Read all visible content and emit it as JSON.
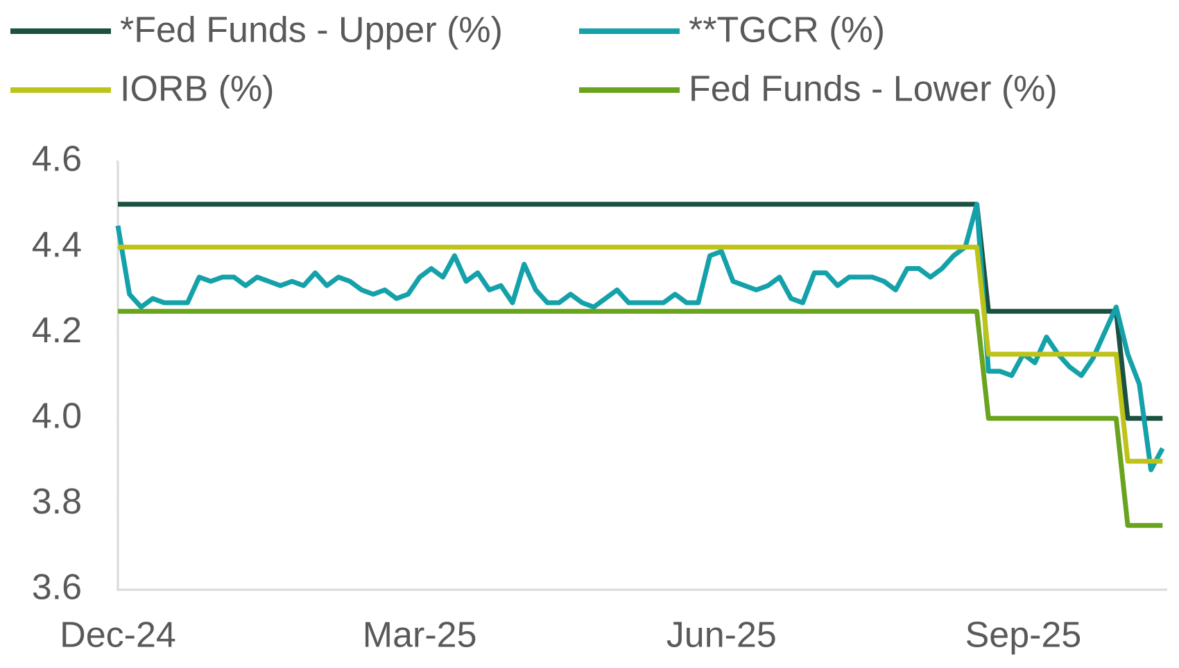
{
  "chart_data": {
    "type": "line",
    "categories": [
      "Dec-24",
      null,
      null,
      null,
      null,
      null,
      null,
      null,
      null,
      null,
      null,
      null,
      null,
      null,
      null,
      null,
      null,
      null,
      null,
      null,
      null,
      null,
      null,
      null,
      null,
      null,
      "Mar-25",
      null,
      null,
      null,
      null,
      null,
      null,
      null,
      null,
      null,
      null,
      null,
      null,
      null,
      null,
      null,
      null,
      null,
      null,
      null,
      null,
      null,
      null,
      null,
      null,
      null,
      "Jun-25",
      null,
      null,
      null,
      null,
      null,
      null,
      null,
      null,
      null,
      null,
      null,
      null,
      null,
      null,
      null,
      null,
      null,
      null,
      null,
      null,
      null,
      null,
      null,
      null,
      null,
      "Sep-25",
      null,
      null,
      null,
      null,
      null,
      null,
      null,
      null,
      null,
      null,
      null,
      null
    ],
    "series": [
      {
        "name": "*Fed Funds - Upper (%)",
        "color": "#1b5142",
        "values": [
          4.5,
          4.5,
          4.5,
          4.5,
          4.5,
          4.5,
          4.5,
          4.5,
          4.5,
          4.5,
          4.5,
          4.5,
          4.5,
          4.5,
          4.5,
          4.5,
          4.5,
          4.5,
          4.5,
          4.5,
          4.5,
          4.5,
          4.5,
          4.5,
          4.5,
          4.5,
          4.5,
          4.5,
          4.5,
          4.5,
          4.5,
          4.5,
          4.5,
          4.5,
          4.5,
          4.5,
          4.5,
          4.5,
          4.5,
          4.5,
          4.5,
          4.5,
          4.5,
          4.5,
          4.5,
          4.5,
          4.5,
          4.5,
          4.5,
          4.5,
          4.5,
          4.5,
          4.5,
          4.5,
          4.5,
          4.5,
          4.5,
          4.5,
          4.5,
          4.5,
          4.5,
          4.5,
          4.5,
          4.5,
          4.5,
          4.5,
          4.5,
          4.5,
          4.5,
          4.5,
          4.5,
          4.5,
          4.5,
          4.5,
          4.5,
          4.25,
          4.25,
          4.25,
          4.25,
          4.25,
          4.25,
          4.25,
          4.25,
          4.25,
          4.25,
          4.25,
          4.25,
          4.0,
          4.0,
          4.0,
          4.0
        ]
      },
      {
        "name": "**TGCR (%)",
        "color": "#14a1a9",
        "values": [
          4.45,
          4.29,
          4.26,
          4.28,
          4.27,
          4.27,
          4.27,
          4.33,
          4.32,
          4.33,
          4.33,
          4.31,
          4.33,
          4.32,
          4.31,
          4.32,
          4.31,
          4.34,
          4.31,
          4.33,
          4.32,
          4.3,
          4.29,
          4.3,
          4.28,
          4.29,
          4.33,
          4.35,
          4.33,
          4.38,
          4.32,
          4.34,
          4.3,
          4.31,
          4.27,
          4.36,
          4.3,
          4.27,
          4.27,
          4.29,
          4.27,
          4.26,
          4.28,
          4.3,
          4.27,
          4.27,
          4.27,
          4.27,
          4.29,
          4.27,
          4.27,
          4.38,
          4.39,
          4.32,
          4.31,
          4.3,
          4.31,
          4.33,
          4.28,
          4.27,
          4.34,
          4.34,
          4.31,
          4.33,
          4.33,
          4.33,
          4.32,
          4.3,
          4.35,
          4.35,
          4.33,
          4.35,
          4.38,
          4.4,
          4.5,
          4.11,
          4.11,
          4.1,
          4.15,
          4.13,
          4.19,
          4.15,
          4.12,
          4.1,
          4.14,
          4.2,
          4.26,
          4.15,
          4.08,
          3.88,
          3.93
        ]
      },
      {
        "name": "IORB (%)",
        "color": "#bec31a",
        "values": [
          4.4,
          4.4,
          4.4,
          4.4,
          4.4,
          4.4,
          4.4,
          4.4,
          4.4,
          4.4,
          4.4,
          4.4,
          4.4,
          4.4,
          4.4,
          4.4,
          4.4,
          4.4,
          4.4,
          4.4,
          4.4,
          4.4,
          4.4,
          4.4,
          4.4,
          4.4,
          4.4,
          4.4,
          4.4,
          4.4,
          4.4,
          4.4,
          4.4,
          4.4,
          4.4,
          4.4,
          4.4,
          4.4,
          4.4,
          4.4,
          4.4,
          4.4,
          4.4,
          4.4,
          4.4,
          4.4,
          4.4,
          4.4,
          4.4,
          4.4,
          4.4,
          4.4,
          4.4,
          4.4,
          4.4,
          4.4,
          4.4,
          4.4,
          4.4,
          4.4,
          4.4,
          4.4,
          4.4,
          4.4,
          4.4,
          4.4,
          4.4,
          4.4,
          4.4,
          4.4,
          4.4,
          4.4,
          4.4,
          4.4,
          4.4,
          4.15,
          4.15,
          4.15,
          4.15,
          4.15,
          4.15,
          4.15,
          4.15,
          4.15,
          4.15,
          4.15,
          4.15,
          3.9,
          3.9,
          3.9,
          3.9
        ]
      },
      {
        "name": "Fed Funds - Lower (%)",
        "color": "#6aa31d",
        "values": [
          4.25,
          4.25,
          4.25,
          4.25,
          4.25,
          4.25,
          4.25,
          4.25,
          4.25,
          4.25,
          4.25,
          4.25,
          4.25,
          4.25,
          4.25,
          4.25,
          4.25,
          4.25,
          4.25,
          4.25,
          4.25,
          4.25,
          4.25,
          4.25,
          4.25,
          4.25,
          4.25,
          4.25,
          4.25,
          4.25,
          4.25,
          4.25,
          4.25,
          4.25,
          4.25,
          4.25,
          4.25,
          4.25,
          4.25,
          4.25,
          4.25,
          4.25,
          4.25,
          4.25,
          4.25,
          4.25,
          4.25,
          4.25,
          4.25,
          4.25,
          4.25,
          4.25,
          4.25,
          4.25,
          4.25,
          4.25,
          4.25,
          4.25,
          4.25,
          4.25,
          4.25,
          4.25,
          4.25,
          4.25,
          4.25,
          4.25,
          4.25,
          4.25,
          4.25,
          4.25,
          4.25,
          4.25,
          4.25,
          4.25,
          4.25,
          4.0,
          4.0,
          4.0,
          4.0,
          4.0,
          4.0,
          4.0,
          4.0,
          4.0,
          4.0,
          4.0,
          4.0,
          3.75,
          3.75,
          3.75,
          3.75
        ]
      }
    ],
    "ylim": [
      3.6,
      4.6
    ],
    "yticks": [
      3.6,
      3.8,
      {
        "value": 4.0,
        "label": "4.0"
      },
      4.2,
      4.4,
      4.6
    ],
    "grid": false
  }
}
